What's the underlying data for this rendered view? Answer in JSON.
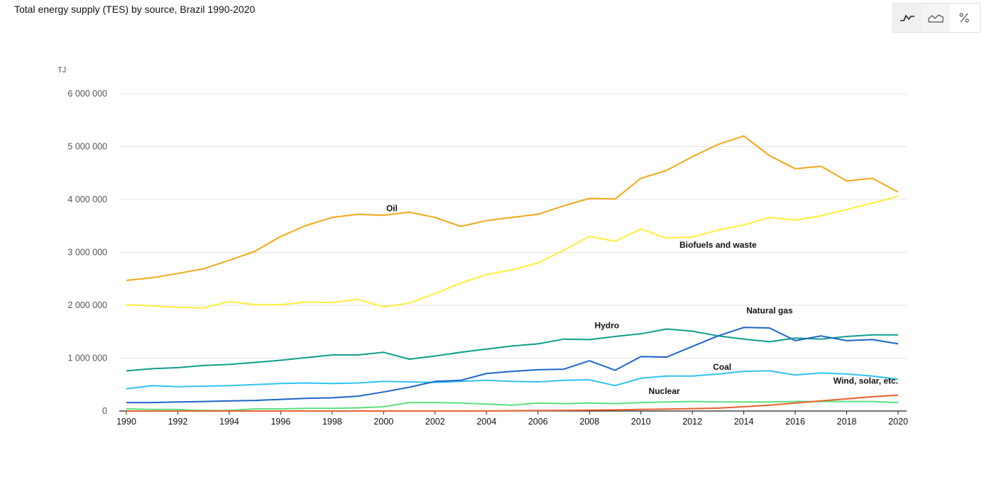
{
  "page": {
    "title": "Total energy supply (TES) by source, Brazil 1990-2020"
  },
  "toolbar": {
    "buttons": [
      {
        "icon": "line-chart-icon",
        "active": true
      },
      {
        "icon": "area-chart-icon",
        "active": false
      },
      {
        "icon": "percent-icon",
        "active": false
      }
    ]
  },
  "chart_data": {
    "type": "line",
    "title": "Total energy supply (TES) by source, Brazil 1990-2020",
    "ylabel": "TJ",
    "xlabel": "",
    "ylim": [
      0,
      6000000
    ],
    "yticks": [
      0,
      1000000,
      2000000,
      3000000,
      4000000,
      5000000,
      6000000
    ],
    "ytick_labels": [
      "0",
      "1 000 000",
      "2 000 000",
      "3 000 000",
      "4 000 000",
      "5 000 000",
      "6 000 000"
    ],
    "x": [
      1990,
      1991,
      1992,
      1993,
      1994,
      1995,
      1996,
      1997,
      1998,
      1999,
      2000,
      2001,
      2002,
      2003,
      2004,
      2005,
      2006,
      2007,
      2008,
      2009,
      2010,
      2011,
      2012,
      2013,
      2014,
      2015,
      2016,
      2017,
      2018,
      2019,
      2020
    ],
    "xticks": [
      "1990",
      "1992",
      "1994",
      "1996",
      "1998",
      "2000",
      "2002",
      "2004",
      "2006",
      "2008",
      "2010",
      "2012",
      "2014",
      "2016",
      "2018",
      "2020"
    ],
    "grid": true,
    "series": [
      {
        "name": "Oil",
        "color": "#F2A818",
        "values": [
          2470000,
          2520000,
          2600000,
          2690000,
          2850000,
          3020000,
          3300000,
          3510000,
          3660000,
          3720000,
          3700000,
          3760000,
          3660000,
          3490000,
          3600000,
          3660000,
          3720000,
          3880000,
          4020000,
          4010000,
          4400000,
          4550000,
          4810000,
          5040000,
          5200000,
          4830000,
          4580000,
          4630000,
          4350000,
          4400000,
          4140000
        ]
      },
      {
        "name": "Biofuels and waste",
        "color": "#FFEE3A",
        "values": [
          2010000,
          1990000,
          1960000,
          1950000,
          2070000,
          2010000,
          2010000,
          2060000,
          2050000,
          2110000,
          1970000,
          2040000,
          2220000,
          2420000,
          2580000,
          2670000,
          2800000,
          3040000,
          3300000,
          3210000,
          3440000,
          3270000,
          3290000,
          3420000,
          3520000,
          3660000,
          3610000,
          3690000,
          3810000,
          3930000,
          4060000
        ]
      },
      {
        "name": "Hydro",
        "color": "#0E9E8C",
        "values": [
          760000,
          800000,
          820000,
          860000,
          880000,
          920000,
          960000,
          1010000,
          1060000,
          1060000,
          1110000,
          980000,
          1040000,
          1110000,
          1170000,
          1230000,
          1270000,
          1360000,
          1350000,
          1410000,
          1460000,
          1550000,
          1510000,
          1420000,
          1360000,
          1310000,
          1380000,
          1360000,
          1410000,
          1440000,
          1440000
        ]
      },
      {
        "name": "Natural gas",
        "color": "#1E64C8",
        "values": [
          160000,
          160000,
          170000,
          180000,
          190000,
          200000,
          220000,
          240000,
          250000,
          280000,
          360000,
          450000,
          560000,
          580000,
          710000,
          750000,
          780000,
          790000,
          950000,
          770000,
          1030000,
          1020000,
          1220000,
          1420000,
          1580000,
          1570000,
          1330000,
          1420000,
          1330000,
          1350000,
          1270000
        ]
      },
      {
        "name": "Coal",
        "color": "#2EC4F0",
        "values": [
          420000,
          480000,
          460000,
          470000,
          480000,
          500000,
          520000,
          530000,
          520000,
          530000,
          560000,
          550000,
          540000,
          560000,
          580000,
          560000,
          550000,
          580000,
          590000,
          480000,
          620000,
          660000,
          660000,
          700000,
          750000,
          760000,
          680000,
          720000,
          700000,
          660000,
          600000
        ]
      },
      {
        "name": "Nuclear",
        "color": "#5BE080",
        "values": [
          40000,
          30000,
          30000,
          10000,
          10000,
          40000,
          40000,
          50000,
          50000,
          60000,
          80000,
          160000,
          160000,
          150000,
          130000,
          110000,
          150000,
          140000,
          150000,
          140000,
          160000,
          170000,
          180000,
          170000,
          170000,
          170000,
          180000,
          180000,
          180000,
          180000,
          160000
        ]
      },
      {
        "name": "Wind, solar, etc.",
        "color": "#E8602E",
        "values": [
          0,
          0,
          0,
          0,
          0,
          0,
          0,
          0,
          0,
          0,
          0,
          0,
          0,
          0,
          2000,
          5000,
          8000,
          12000,
          18000,
          22000,
          30000,
          38000,
          46000,
          55000,
          80000,
          110000,
          150000,
          190000,
          230000,
          270000,
          300000
        ]
      }
    ]
  }
}
